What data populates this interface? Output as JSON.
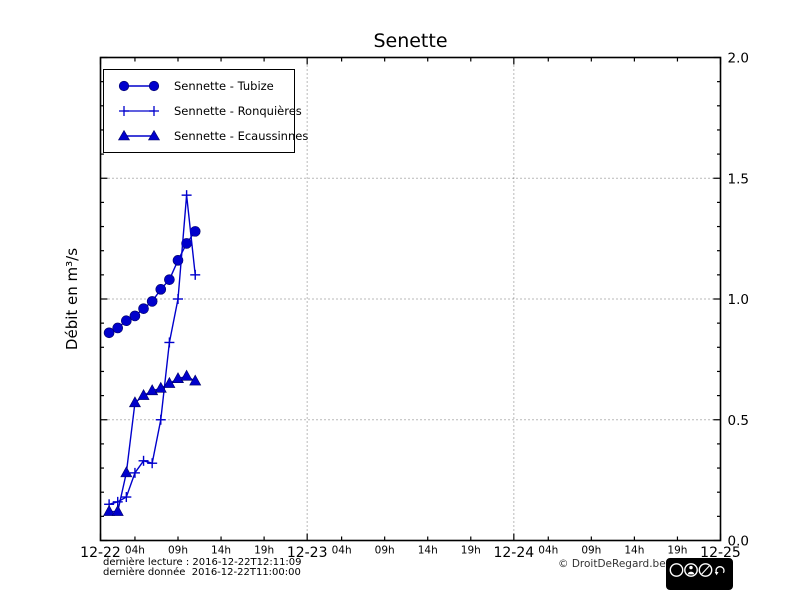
{
  "chart_data": {
    "type": "line",
    "title": "Senette",
    "ylabel": "Débit en m³/s",
    "xlabel": "",
    "ylim": [
      0.0,
      2.0
    ],
    "y_major_ticks": [
      "2.0",
      "1.5",
      "1.0",
      "0.5",
      "0.0"
    ],
    "y_minor_step": 0.1,
    "x_axis": {
      "start": "2016-12-22T00:00",
      "end": "2016-12-25T00:00",
      "total_hours": 72,
      "day_ticks": [
        {
          "hour": 0,
          "label": "12-22"
        },
        {
          "hour": 24,
          "label": "12-23"
        },
        {
          "hour": 48,
          "label": "12-24"
        },
        {
          "hour": 72,
          "label": "12-25"
        }
      ],
      "hour_tick_offsets": [
        {
          "offset": 4,
          "label": "04h"
        },
        {
          "offset": 9,
          "label": "09h"
        },
        {
          "offset": 14,
          "label": "14h"
        },
        {
          "offset": 19,
          "label": "19h"
        }
      ]
    },
    "grid": {
      "horizontal_values": [
        0.5,
        1.0,
        1.5
      ],
      "vertical_hours": [
        24,
        48
      ],
      "style": "dotted"
    },
    "legend": {
      "position": "upper-left"
    },
    "series_color": "#0000cc",
    "series": [
      {
        "name": "Sennette - Tubize",
        "marker": "circle",
        "hours": [
          1,
          2,
          3,
          4,
          5,
          6,
          7,
          8,
          9,
          10,
          11
        ],
        "values": [
          0.86,
          0.88,
          0.91,
          0.93,
          0.96,
          0.99,
          1.04,
          1.08,
          1.16,
          1.23,
          1.28
        ]
      },
      {
        "name": "Sennette - Ronquières",
        "marker": "plus",
        "hours": [
          1,
          2,
          3,
          4,
          5,
          6,
          7,
          8,
          9,
          10,
          11
        ],
        "values": [
          0.15,
          0.16,
          0.18,
          0.28,
          0.33,
          0.32,
          0.5,
          0.82,
          1.0,
          1.43,
          1.1
        ]
      },
      {
        "name": "Sennette - Ecaussinnes",
        "marker": "triangle",
        "hours": [
          1,
          2,
          3,
          4,
          5,
          6,
          7,
          8,
          9,
          10,
          11
        ],
        "values": [
          0.12,
          0.12,
          0.28,
          0.57,
          0.6,
          0.62,
          0.63,
          0.65,
          0.67,
          0.68,
          0.66
        ]
      }
    ]
  },
  "footer": {
    "last_reading": "dernière lecture : 2016-12-22T12:11:09",
    "last_data": "dernière donnée  2016-12-22T11:00:00",
    "copyright": "© DroitDeRegard.be",
    "license_badge": {
      "name": "CC BY-NC-SA",
      "letters": [
        "BY",
        "NC",
        "SA"
      ]
    }
  }
}
